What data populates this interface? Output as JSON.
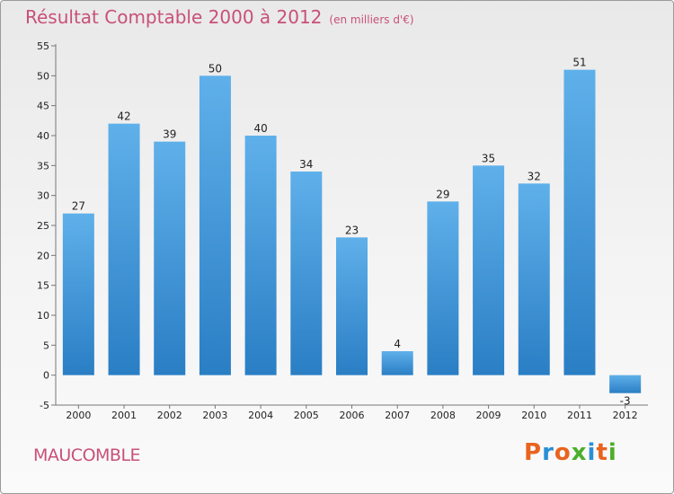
{
  "header": {
    "title": "Résultat Comptable 2000 à 2012",
    "subtitle": "(en milliers d'€)"
  },
  "footer": {
    "place": "MAUCOMBLE",
    "brand": "Proxiti",
    "brand_colors": [
      "#e8641e",
      "#2a8fd6",
      "#e8641e",
      "#4cae2a",
      "#2a8fd6",
      "#e8641e",
      "#4cae2a"
    ]
  },
  "colors": {
    "bar_top": "#5fb0ea",
    "bar_bottom": "#2a7ec4",
    "accent": "#c8507a"
  },
  "chart_data": {
    "type": "bar",
    "title": "Résultat Comptable 2000 à 2012",
    "subtitle": "(en milliers d'€)",
    "xlabel": "",
    "ylabel": "",
    "categories": [
      "2000",
      "2001",
      "2002",
      "2003",
      "2004",
      "2005",
      "2006",
      "2007",
      "2008",
      "2009",
      "2010",
      "2011",
      "2012"
    ],
    "values": [
      27,
      42,
      39,
      50,
      40,
      34,
      23,
      4,
      29,
      35,
      32,
      51,
      -3
    ],
    "ylim": [
      -5,
      55
    ],
    "yticks": [
      -5,
      0,
      5,
      10,
      15,
      20,
      25,
      30,
      35,
      40,
      45,
      50,
      55
    ],
    "grid": false,
    "legend": "none"
  }
}
